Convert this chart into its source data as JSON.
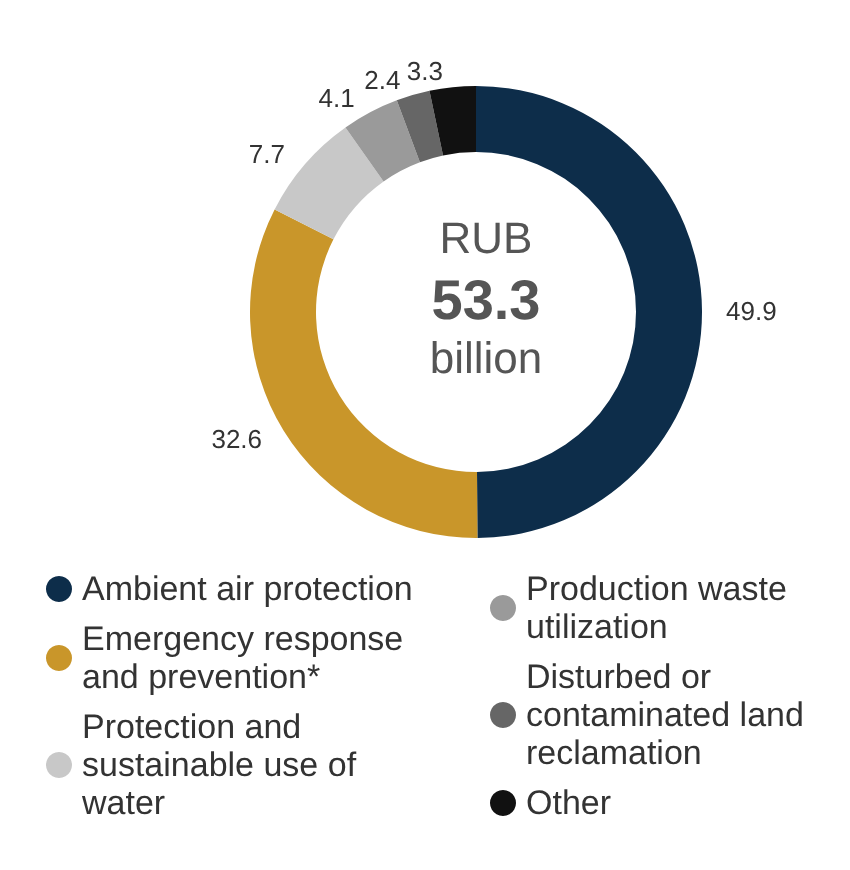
{
  "chart_data": {
    "type": "donut",
    "categories": [
      "Ambient air protection",
      "Emergency response and prevention*",
      "Protection and sustainable use of water",
      "Production waste utilization",
      "Disturbed or contaminated land reclamation",
      "Other"
    ],
    "values": [
      49.9,
      32.6,
      7.7,
      4.1,
      2.4,
      3.3
    ],
    "colors": [
      "#0d2d4a",
      "#c9962a",
      "#c8c8c8",
      "#9a9a9a",
      "#666666",
      "#111111"
    ],
    "annotations": [
      "RUB",
      "53.3",
      "billion"
    ],
    "data_labels": true,
    "legend": "bottom"
  }
}
